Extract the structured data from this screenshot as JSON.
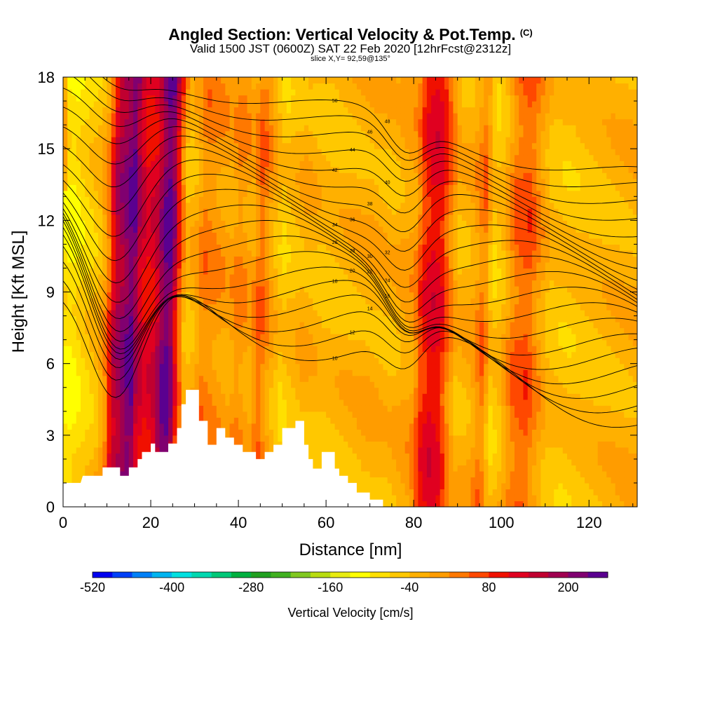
{
  "header": {
    "title": "Angled Section: Vertical Velocity & Pot.Temp.",
    "copyright": "(C)",
    "valid_line": "Valid 1500 JST (0600Z) SAT 22 Feb 2020 [12hrFcst@2312z]",
    "slice_line": "slice X,Y= 92,59@135°"
  },
  "chart_data": {
    "type": "heatmap",
    "title": "Angled Section: Vertical Velocity & Pot.Temp.",
    "xlabel": "Distance [nm]",
    "ylabel": "Height [Kft MSL]",
    "xlim": [
      0,
      131
    ],
    "ylim": [
      0,
      18
    ],
    "x_ticks": [
      0,
      20,
      40,
      60,
      80,
      100,
      120
    ],
    "y_ticks": [
      0,
      3,
      6,
      9,
      12,
      15,
      18
    ],
    "colorbar": {
      "label": "Vertical Velocity [cm/s]",
      "tick_labels": [
        "-520",
        "-400",
        "-280",
        "-160",
        "-40",
        "80",
        "200"
      ],
      "tick_values": [
        -520,
        -400,
        -280,
        -160,
        -40,
        80,
        200
      ],
      "levels": [
        -520,
        -490,
        -460,
        -430,
        -400,
        -370,
        -340,
        -310,
        -280,
        -250,
        -220,
        -190,
        -160,
        -130,
        -100,
        -70,
        -40,
        -10,
        20,
        50,
        80,
        110,
        140,
        170,
        200,
        230,
        260
      ],
      "colors": [
        "#0000f0",
        "#0040f8",
        "#0080f8",
        "#00b4f0",
        "#00e0e0",
        "#00d8b0",
        "#00c878",
        "#00b040",
        "#20a020",
        "#40b020",
        "#80c820",
        "#b8dc10",
        "#e8ec10",
        "#ffff00",
        "#ffe000",
        "#ffc800",
        "#ffb000",
        "#ff9c00",
        "#ff7800",
        "#ff4800",
        "#f01000",
        "#e00020",
        "#c00030",
        "#a00050",
        "#800070",
        "#5a0090"
      ]
    },
    "vertical_velocity_columns": [
      {
        "x": 0,
        "value": -90
      },
      {
        "x": 2,
        "value": -100
      },
      {
        "x": 4,
        "value": -80
      },
      {
        "x": 6,
        "value": -60
      },
      {
        "x": 8,
        "value": -40
      },
      {
        "x": 10,
        "value": 20
      },
      {
        "x": 11,
        "value": 100
      },
      {
        "x": 12,
        "value": 160
      },
      {
        "x": 14,
        "value": 200
      },
      {
        "x": 16,
        "value": 240
      },
      {
        "x": 17,
        "value": 160
      },
      {
        "x": 19,
        "value": 110
      },
      {
        "x": 21,
        "value": 130
      },
      {
        "x": 23,
        "value": 220
      },
      {
        "x": 24,
        "value": 240
      },
      {
        "x": 25,
        "value": 200
      },
      {
        "x": 26,
        "value": 90
      },
      {
        "x": 27,
        "value": 30
      },
      {
        "x": 28,
        "value": -40
      },
      {
        "x": 30,
        "value": -20
      },
      {
        "x": 32,
        "value": 30
      },
      {
        "x": 35,
        "value": 10
      },
      {
        "x": 38,
        "value": -10
      },
      {
        "x": 40,
        "value": 20
      },
      {
        "x": 43,
        "value": -10
      },
      {
        "x": 45,
        "value": 50
      },
      {
        "x": 47,
        "value": 0
      },
      {
        "x": 50,
        "value": -60
      },
      {
        "x": 52,
        "value": -40
      },
      {
        "x": 55,
        "value": -20
      },
      {
        "x": 60,
        "value": -40
      },
      {
        "x": 65,
        "value": -30
      },
      {
        "x": 70,
        "value": -20
      },
      {
        "x": 75,
        "value": -30
      },
      {
        "x": 80,
        "value": 0
      },
      {
        "x": 82,
        "value": 80
      },
      {
        "x": 84,
        "value": 120
      },
      {
        "x": 86,
        "value": 110
      },
      {
        "x": 88,
        "value": 40
      },
      {
        "x": 90,
        "value": -30
      },
      {
        "x": 93,
        "value": -20
      },
      {
        "x": 96,
        "value": 40
      },
      {
        "x": 98,
        "value": -60
      },
      {
        "x": 100,
        "value": -40
      },
      {
        "x": 103,
        "value": 40
      },
      {
        "x": 106,
        "value": 60
      },
      {
        "x": 108,
        "value": 20
      },
      {
        "x": 111,
        "value": -40
      },
      {
        "x": 115,
        "value": -50
      },
      {
        "x": 120,
        "value": -40
      },
      {
        "x": 125,
        "value": -30
      },
      {
        "x": 131,
        "value": -20
      }
    ],
    "terrain_kft": [
      {
        "x": 0,
        "value": 1.0
      },
      {
        "x": 4,
        "value": 1.0
      },
      {
        "x": 4.5,
        "value": 1.3
      },
      {
        "x": 9,
        "value": 1.3
      },
      {
        "x": 9,
        "value": 1.65
      },
      {
        "x": 13,
        "value": 1.65
      },
      {
        "x": 13,
        "value": 1.3
      },
      {
        "x": 15,
        "value": 1.3
      },
      {
        "x": 15,
        "value": 1.65
      },
      {
        "x": 17,
        "value": 1.65
      },
      {
        "x": 17,
        "value": 2.0
      },
      {
        "x": 18,
        "value": 2.0
      },
      {
        "x": 18,
        "value": 2.3
      },
      {
        "x": 20,
        "value": 2.3
      },
      {
        "x": 20,
        "value": 2.65
      },
      {
        "x": 21,
        "value": 2.65
      },
      {
        "x": 21,
        "value": 2.3
      },
      {
        "x": 24,
        "value": 2.3
      },
      {
        "x": 24,
        "value": 2.65
      },
      {
        "x": 26,
        "value": 2.65
      },
      {
        "x": 26,
        "value": 3.3
      },
      {
        "x": 27,
        "value": 3.3
      },
      {
        "x": 27,
        "value": 4.3
      },
      {
        "x": 28,
        "value": 4.3
      },
      {
        "x": 28,
        "value": 4.9
      },
      {
        "x": 31,
        "value": 4.9
      },
      {
        "x": 31,
        "value": 3.6
      },
      {
        "x": 33,
        "value": 3.6
      },
      {
        "x": 33,
        "value": 2.6
      },
      {
        "x": 35,
        "value": 2.6
      },
      {
        "x": 35,
        "value": 3.3
      },
      {
        "x": 37,
        "value": 3.3
      },
      {
        "x": 37,
        "value": 2.9
      },
      {
        "x": 39,
        "value": 2.9
      },
      {
        "x": 39,
        "value": 2.6
      },
      {
        "x": 41,
        "value": 2.6
      },
      {
        "x": 41,
        "value": 2.3
      },
      {
        "x": 44,
        "value": 2.3
      },
      {
        "x": 44,
        "value": 2.0
      },
      {
        "x": 46,
        "value": 2.0
      },
      {
        "x": 46,
        "value": 2.3
      },
      {
        "x": 48,
        "value": 2.3
      },
      {
        "x": 48,
        "value": 2.6
      },
      {
        "x": 50,
        "value": 2.6
      },
      {
        "x": 50,
        "value": 3.3
      },
      {
        "x": 53,
        "value": 3.3
      },
      {
        "x": 53,
        "value": 3.6
      },
      {
        "x": 55,
        "value": 3.6
      },
      {
        "x": 55,
        "value": 2.6
      },
      {
        "x": 56,
        "value": 2.6
      },
      {
        "x": 56,
        "value": 2.0
      },
      {
        "x": 57,
        "value": 2.0
      },
      {
        "x": 57,
        "value": 1.6
      },
      {
        "x": 59,
        "value": 1.6
      },
      {
        "x": 59,
        "value": 2.3
      },
      {
        "x": 62,
        "value": 2.3
      },
      {
        "x": 62,
        "value": 1.6
      },
      {
        "x": 63,
        "value": 1.6
      },
      {
        "x": 63,
        "value": 1.3
      },
      {
        "x": 65,
        "value": 1.3
      },
      {
        "x": 65,
        "value": 1.0
      },
      {
        "x": 67,
        "value": 1.0
      },
      {
        "x": 67,
        "value": 0.6
      },
      {
        "x": 70,
        "value": 0.6
      },
      {
        "x": 70,
        "value": 0.3
      },
      {
        "x": 73,
        "value": 0.3
      },
      {
        "x": 73,
        "value": 0.0
      }
    ],
    "pot_temp_contours": [
      {
        "label": "10",
        "base": 7.3
      },
      {
        "label": "12",
        "base": 7.7
      },
      {
        "label": "14",
        "base": 8.1
      },
      {
        "label": "16",
        "base": 8.5
      },
      {
        "label": "18",
        "base": 8.9
      },
      {
        "label": "20",
        "base": 9.3
      },
      {
        "label": "22",
        "base": 9.8
      },
      {
        "label": "24",
        "base": 10.3
      },
      {
        "label": "26",
        "base": 10.8
      },
      {
        "label": "28",
        "base": 11.3
      },
      {
        "label": "30",
        "base": 11.8
      },
      {
        "label": "32",
        "base": 12.3
      },
      {
        "label": "34",
        "base": 12.8
      },
      {
        "label": "36",
        "base": 13.3
      },
      {
        "label": "38",
        "base": 13.8
      },
      {
        "label": "40",
        "base": 14.3
      },
      {
        "label": "42",
        "base": 14.8
      },
      {
        "label": "44",
        "base": 15.3
      },
      {
        "label": "46",
        "base": 15.8
      },
      {
        "label": "48",
        "base": 16.3
      },
      {
        "label": "50",
        "base": 16.8
      }
    ]
  }
}
